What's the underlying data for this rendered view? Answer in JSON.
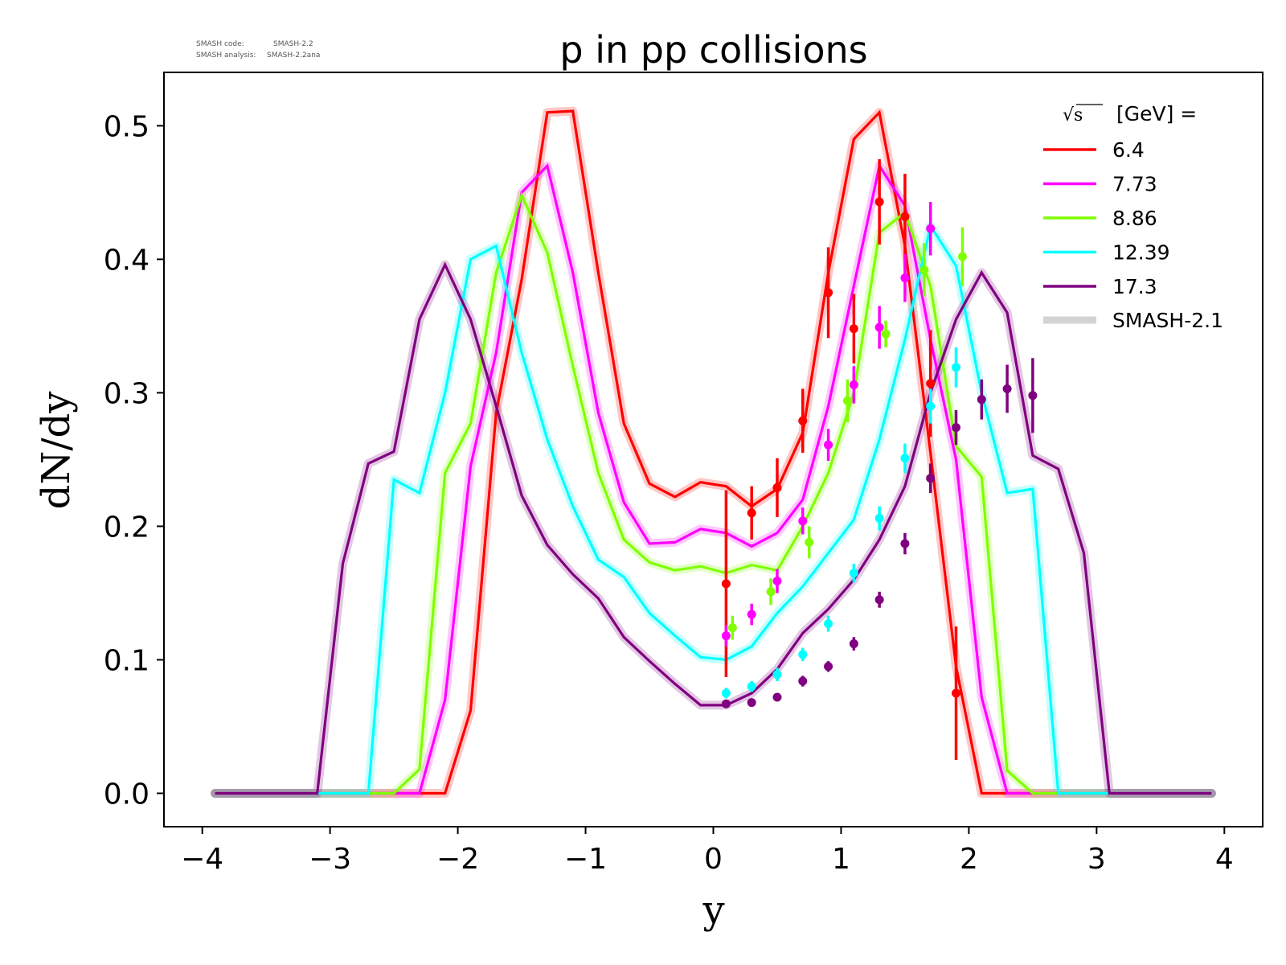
{
  "meta": {
    "code_label": "SMASH code:",
    "code_value": "SMASH-2.2",
    "analysis_label": "SMASH analysis:",
    "analysis_value": "SMASH-2.2ana"
  },
  "chart_data": {
    "type": "line",
    "title": "p in pp collisions",
    "xlabel": "y",
    "ylabel": "dN/dy",
    "xlim": [
      -4.3,
      4.3
    ],
    "ylim": [
      -0.025,
      0.54
    ],
    "xticks": [
      -4,
      -3,
      -2,
      -1,
      0,
      1,
      2,
      3,
      4
    ],
    "xtick_labels": [
      "−4",
      "−3",
      "−2",
      "−1",
      "0",
      "1",
      "2",
      "3",
      "4"
    ],
    "yticks": [
      0.0,
      0.1,
      0.2,
      0.3,
      0.4,
      0.5
    ],
    "ytick_labels": [
      "0.0",
      "0.1",
      "0.2",
      "0.3",
      "0.4",
      "0.5"
    ],
    "grid": false,
    "legend": {
      "placement": "top-right",
      "title_symbol": "√s",
      "title_text": "[GeV] =",
      "reference_label": "SMASH-2.1",
      "reference_color": "#d3d3d3"
    },
    "x": [
      -3.9,
      -3.7,
      -3.5,
      -3.3,
      -3.1,
      -2.9,
      -2.7,
      -2.5,
      -2.3,
      -2.1,
      -1.9,
      -1.7,
      -1.5,
      -1.3,
      -1.1,
      -0.9,
      -0.7,
      -0.5,
      -0.3,
      -0.1,
      0.1,
      0.3,
      0.5,
      0.7,
      0.9,
      1.1,
      1.3,
      1.5,
      1.7,
      1.9,
      2.1,
      2.3,
      2.5,
      2.7,
      2.9,
      3.1,
      3.3,
      3.5,
      3.7,
      3.9
    ],
    "series": [
      {
        "name": "6.4",
        "color": "#ff0000",
        "values": [
          0,
          0,
          0,
          0,
          0,
          0,
          0,
          0,
          0,
          0,
          0.062,
          0.285,
          0.385,
          0.51,
          0.511,
          0.39,
          0.277,
          0.232,
          0.222,
          0.233,
          0.23,
          0.215,
          0.228,
          0.27,
          0.39,
          0.49,
          0.51,
          0.41,
          0.255,
          0.095,
          0,
          0,
          0,
          0,
          0,
          0,
          0,
          0,
          0,
          0
        ],
        "points": [
          {
            "x": 0.1,
            "y": 0.157,
            "err": 0.07
          },
          {
            "x": 0.3,
            "y": 0.21,
            "err": 0.02
          },
          {
            "x": 0.5,
            "y": 0.229,
            "err": 0.022
          },
          {
            "x": 0.7,
            "y": 0.279,
            "err": 0.024
          },
          {
            "x": 0.9,
            "y": 0.375,
            "err": 0.034
          },
          {
            "x": 1.1,
            "y": 0.348,
            "err": 0.026
          },
          {
            "x": 1.3,
            "y": 0.443,
            "err": 0.032
          },
          {
            "x": 1.5,
            "y": 0.432,
            "err": 0.032
          },
          {
            "x": 1.7,
            "y": 0.307,
            "err": 0.04
          },
          {
            "x": 1.9,
            "y": 0.075,
            "err": 0.05
          }
        ]
      },
      {
        "name": "7.73",
        "color": "#ff00ff",
        "values": [
          0,
          0,
          0,
          0,
          0,
          0,
          0,
          0,
          0,
          0.07,
          0.245,
          0.33,
          0.45,
          0.47,
          0.39,
          0.285,
          0.218,
          0.187,
          0.188,
          0.198,
          0.195,
          0.185,
          0.195,
          0.22,
          0.29,
          0.38,
          0.47,
          0.44,
          0.34,
          0.25,
          0.072,
          0,
          0,
          0,
          0,
          0,
          0,
          0,
          0,
          0
        ],
        "points": [
          {
            "x": 0.1,
            "y": 0.118,
            "err": 0.008
          },
          {
            "x": 0.3,
            "y": 0.134,
            "err": 0.008
          },
          {
            "x": 0.5,
            "y": 0.159,
            "err": 0.009
          },
          {
            "x": 0.7,
            "y": 0.204,
            "err": 0.01
          },
          {
            "x": 0.9,
            "y": 0.261,
            "err": 0.012
          },
          {
            "x": 1.1,
            "y": 0.306,
            "err": 0.014
          },
          {
            "x": 1.3,
            "y": 0.349,
            "err": 0.016
          },
          {
            "x": 1.5,
            "y": 0.386,
            "err": 0.018
          },
          {
            "x": 1.7,
            "y": 0.423,
            "err": 0.02
          }
        ]
      },
      {
        "name": "8.86",
        "color": "#7fff00",
        "values": [
          0,
          0,
          0,
          0,
          0,
          0,
          0,
          0,
          0.018,
          0.24,
          0.277,
          0.39,
          0.448,
          0.405,
          0.32,
          0.24,
          0.19,
          0.173,
          0.167,
          0.17,
          0.165,
          0.171,
          0.167,
          0.2,
          0.24,
          0.3,
          0.42,
          0.435,
          0.38,
          0.26,
          0.237,
          0.017,
          0,
          0,
          0,
          0,
          0,
          0,
          0,
          0
        ],
        "points": [
          {
            "x": 0.15,
            "y": 0.124,
            "err": 0.009
          },
          {
            "x": 0.45,
            "y": 0.151,
            "err": 0.01
          },
          {
            "x": 0.75,
            "y": 0.188,
            "err": 0.012
          },
          {
            "x": 1.05,
            "y": 0.294,
            "err": 0.016
          },
          {
            "x": 1.35,
            "y": 0.344,
            "err": 0.01
          },
          {
            "x": 1.65,
            "y": 0.392,
            "err": 0.02
          },
          {
            "x": 1.95,
            "y": 0.402,
            "err": 0.022
          }
        ]
      },
      {
        "name": "12.39",
        "color": "#00ffff",
        "values": [
          0,
          0,
          0,
          0,
          0,
          0,
          0,
          0.235,
          0.225,
          0.3,
          0.4,
          0.41,
          0.33,
          0.265,
          0.215,
          0.175,
          0.162,
          0.135,
          0.118,
          0.102,
          0.1,
          0.11,
          0.135,
          0.155,
          0.18,
          0.205,
          0.265,
          0.34,
          0.425,
          0.395,
          0.3,
          0.225,
          0.228,
          0,
          0,
          0,
          0,
          0,
          0,
          0
        ],
        "points": [
          {
            "x": 0.1,
            "y": 0.075,
            "err": 0.004
          },
          {
            "x": 0.3,
            "y": 0.08,
            "err": 0.004
          },
          {
            "x": 0.5,
            "y": 0.089,
            "err": 0.005
          },
          {
            "x": 0.7,
            "y": 0.104,
            "err": 0.005
          },
          {
            "x": 0.9,
            "y": 0.127,
            "err": 0.006
          },
          {
            "x": 1.1,
            "y": 0.165,
            "err": 0.007
          },
          {
            "x": 1.3,
            "y": 0.206,
            "err": 0.009
          },
          {
            "x": 1.5,
            "y": 0.251,
            "err": 0.011
          },
          {
            "x": 1.7,
            "y": 0.29,
            "err": 0.013
          },
          {
            "x": 1.9,
            "y": 0.319,
            "err": 0.015
          }
        ]
      },
      {
        "name": "17.3",
        "color": "#800080",
        "values": [
          0,
          0,
          0,
          0,
          0,
          0.172,
          0.247,
          0.256,
          0.355,
          0.396,
          0.355,
          0.29,
          0.223,
          0.186,
          0.164,
          0.146,
          0.117,
          0.099,
          0.082,
          0.066,
          0.066,
          0.075,
          0.093,
          0.12,
          0.138,
          0.16,
          0.19,
          0.23,
          0.3,
          0.355,
          0.39,
          0.36,
          0.253,
          0.243,
          0.18,
          0,
          0,
          0,
          0,
          0
        ],
        "points": [
          {
            "x": 0.1,
            "y": 0.067,
            "err": 0.003
          },
          {
            "x": 0.3,
            "y": 0.068,
            "err": 0.003
          },
          {
            "x": 0.5,
            "y": 0.072,
            "err": 0.003
          },
          {
            "x": 0.7,
            "y": 0.084,
            "err": 0.004
          },
          {
            "x": 0.9,
            "y": 0.095,
            "err": 0.004
          },
          {
            "x": 1.1,
            "y": 0.112,
            "err": 0.005
          },
          {
            "x": 1.3,
            "y": 0.145,
            "err": 0.006
          },
          {
            "x": 1.5,
            "y": 0.187,
            "err": 0.008
          },
          {
            "x": 1.7,
            "y": 0.236,
            "err": 0.011
          },
          {
            "x": 1.9,
            "y": 0.274,
            "err": 0.013
          },
          {
            "x": 2.1,
            "y": 0.295,
            "err": 0.015
          },
          {
            "x": 2.3,
            "y": 0.303,
            "err": 0.018
          },
          {
            "x": 2.5,
            "y": 0.298,
            "err": 0.028
          }
        ]
      }
    ]
  }
}
